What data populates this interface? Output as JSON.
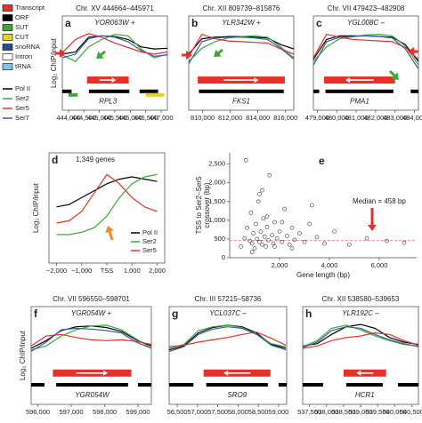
{
  "legend": {
    "tracks": [
      {
        "name": "Transcript",
        "color": "#e8302a"
      },
      {
        "name": "ORF",
        "color": "#000000"
      },
      {
        "name": "SUT",
        "color": "#3aaa35"
      },
      {
        "name": "CUT",
        "color": "#e8d21c"
      },
      {
        "name": "snoRNA",
        "color": "#1f4e9e"
      },
      {
        "name": "Intron",
        "color": "#ffffff"
      },
      {
        "name": "tRNA",
        "color": "#7fc7e8"
      }
    ],
    "series": [
      {
        "name": "Pol II",
        "color": "#000000"
      },
      {
        "name": "Ser2",
        "color": "#3aaa35"
      },
      {
        "name": "Ser5",
        "color": "#e8302a"
      },
      {
        "name": "Ser7",
        "color": "#3b5ba9"
      }
    ]
  },
  "chart_data": [
    {
      "type": "line",
      "letter": "a",
      "title": "Chr. XV 444664–445971",
      "subtitle": "YOR063W +",
      "gene": "RPL3",
      "ylabel": "Log₂ ChIP/input",
      "xlim": [
        443800,
        447200
      ],
      "ylim": [
        -3,
        3
      ],
      "xticks": [
        {
          "value": 444000,
          "label": "444,000"
        },
        {
          "value": 444500,
          "label": "444,500"
        },
        {
          "value": 445000,
          "label": "445,000"
        },
        {
          "value": 445500,
          "label": "445,500"
        },
        {
          "value": 446000,
          "label": "446,000"
        },
        {
          "value": 446500,
          "label": "446,500"
        },
        {
          "value": 447000,
          "label": "447,000"
        }
      ],
      "x": [
        443800,
        444225,
        444650,
        445075,
        445500,
        445925,
        446350,
        446775,
        447200
      ],
      "series": [
        {
          "name": "Pol II",
          "color": "#000000",
          "values": [
            -0.5,
            -0.2,
            1.8,
            2.0,
            1.9,
            1.5,
            0.5,
            0.2,
            0.3
          ]
        },
        {
          "name": "Ser2",
          "color": "#3aaa35",
          "values": [
            -0.6,
            -1.5,
            0.5,
            1.5,
            2.2,
            2.0,
            0.2,
            -1.0,
            -0.5
          ]
        },
        {
          "name": "Ser5",
          "color": "#e8302a",
          "values": [
            -0.3,
            1.5,
            2.3,
            1.8,
            1.0,
            0.4,
            -0.2,
            -0.5,
            -0.2
          ]
        },
        {
          "name": "Ser7",
          "color": "#3b5ba9",
          "values": [
            -1.0,
            -0.5,
            1.6,
            2.0,
            1.8,
            1.2,
            0.0,
            -0.8,
            -0.6
          ]
        }
      ],
      "transcript": [
        444600,
        445950
      ],
      "orfs": [
        [
          444664,
          445971
        ],
        [
          443800,
          444100
        ],
        [
          446300,
          446900
        ]
      ],
      "suts": [
        [
          444000,
          444300
        ]
      ],
      "cuts": [
        [
          446500,
          447100
        ]
      ]
    },
    {
      "type": "line",
      "letter": "b",
      "title": "Chr. XII 809739–815876",
      "subtitle": "YLR342W +",
      "gene": "FKS1",
      "xlim": [
        809000,
        816600
      ],
      "ylim": [
        -3,
        3
      ],
      "xticks": [
        {
          "value": 810000,
          "label": "810,000"
        },
        {
          "value": 812000,
          "label": "812,000"
        },
        {
          "value": 814000,
          "label": "814,000"
        },
        {
          "value": 816000,
          "label": "816,000"
        }
      ],
      "x": [
        809000,
        809950,
        810900,
        811850,
        812800,
        813750,
        814700,
        815650,
        816600
      ],
      "series": [
        {
          "name": "Pol II",
          "color": "#000000",
          "values": [
            -0.5,
            1.6,
            1.8,
            1.9,
            1.9,
            1.8,
            1.7,
            0.8,
            0.2
          ]
        },
        {
          "name": "Ser2",
          "color": "#3aaa35",
          "values": [
            -1.5,
            0.3,
            1.2,
            1.7,
            1.9,
            2.0,
            1.8,
            0.5,
            -1.0
          ]
        },
        {
          "name": "Ser5",
          "color": "#e8302a",
          "values": [
            -0.8,
            2.2,
            1.6,
            1.3,
            1.2,
            1.1,
            1.0,
            0.2,
            -0.5
          ]
        },
        {
          "name": "Ser7",
          "color": "#3b5ba9",
          "values": [
            -1.8,
            1.2,
            1.7,
            1.8,
            1.8,
            1.7,
            1.5,
            0.3,
            -1.2
          ]
        }
      ],
      "transcript": [
        809650,
        815950
      ],
      "orfs": [
        [
          809739,
          815876
        ]
      ]
    },
    {
      "type": "line",
      "letter": "c",
      "title": "Chr. VII 479423–482908",
      "subtitle": "YGL008C –",
      "gene": "PMA1",
      "xlim": [
        478800,
        484200
      ],
      "ylim": [
        -3,
        3
      ],
      "xticks": [
        {
          "value": 479000,
          "label": "479,000"
        },
        {
          "value": 480000,
          "label": "480,000"
        },
        {
          "value": 481000,
          "label": "481,000"
        },
        {
          "value": 482000,
          "label": "482,000"
        },
        {
          "value": 483000,
          "label": "483,000"
        },
        {
          "value": 484000,
          "label": "484,000"
        }
      ],
      "x": [
        478800,
        479475,
        480150,
        480825,
        481500,
        482175,
        482850,
        483525,
        484200
      ],
      "series": [
        {
          "name": "Pol II",
          "color": "#000000",
          "values": [
            -1.2,
            1.5,
            2.0,
            2.0,
            2.0,
            1.9,
            1.8,
            0.8,
            -1.5
          ]
        },
        {
          "name": "Ser2",
          "color": "#3aaa35",
          "values": [
            -1.5,
            0.5,
            1.6,
            1.9,
            2.1,
            2.2,
            2.0,
            0.6,
            -2.0
          ]
        },
        {
          "name": "Ser5",
          "color": "#e8302a",
          "values": [
            -1.0,
            2.2,
            1.8,
            1.5,
            1.4,
            1.3,
            1.2,
            0.4,
            -1.2
          ]
        },
        {
          "name": "Ser7",
          "color": "#3b5ba9",
          "values": [
            -2.0,
            1.2,
            1.8,
            1.9,
            2.0,
            1.9,
            1.7,
            0.2,
            -2.5
          ]
        }
      ],
      "transcript": [
        483000,
        479350
      ],
      "orfs": [
        [
          479423,
          482908
        ],
        [
          478800,
          479100
        ],
        [
          483800,
          484200
        ]
      ]
    },
    {
      "type": "line",
      "letter": "d",
      "subtitle": "1,349 genes",
      "ylabel": "Log₂ ChIP/input",
      "legend": true,
      "xlim": [
        -2300,
        2300
      ],
      "ylim": [
        -2,
        2
      ],
      "xticks": [
        {
          "value": -2000,
          "label": "−2,000"
        },
        {
          "value": -1000,
          "label": "−1,000"
        },
        {
          "value": 0,
          "label": "TSS"
        },
        {
          "value": 1000,
          "label": "1,000"
        },
        {
          "value": 2000,
          "label": "2,000"
        }
      ],
      "x": [
        -2000,
        -1500,
        -1000,
        -500,
        0,
        500,
        1000,
        1500,
        2000
      ],
      "series": [
        {
          "name": "Pol II",
          "color": "#000000",
          "values": [
            0.2,
            0.3,
            0.6,
            0.9,
            1.2,
            1.4,
            1.5,
            1.4,
            1.3
          ]
        },
        {
          "name": "Ser2",
          "color": "#3aaa35",
          "values": [
            -1.0,
            -1.0,
            -0.9,
            -0.7,
            -0.2,
            0.6,
            1.2,
            1.5,
            1.6
          ]
        },
        {
          "name": "Ser5",
          "color": "#e8302a",
          "values": [
            -0.5,
            -0.4,
            0.0,
            0.8,
            1.6,
            1.2,
            0.6,
            0.2,
            0.0
          ]
        }
      ]
    },
    {
      "type": "scatter",
      "letter": "e",
      "xlabel": "Gene length (bp)",
      "ylabel": [
        "TSS to Ser2–Ser5",
        "crossover (bp)"
      ],
      "annotation": "Median = 458 bp",
      "median": 458,
      "xlim": [
        0,
        7500
      ],
      "ylim": [
        0,
        2800
      ],
      "xticks": [
        {
          "value": 2000,
          "label": "2,000"
        },
        {
          "value": 4000,
          "label": "4,000"
        },
        {
          "value": 6000,
          "label": "6,000"
        }
      ],
      "yticks": [
        0,
        500,
        {
          "value": 1000,
          "label": "1,000"
        },
        {
          "value": 1500,
          "label": "1,500"
        },
        {
          "value": 2000,
          "label": "2,000"
        },
        {
          "value": 2500,
          "label": "2,500"
        }
      ],
      "x": [
        450,
        600,
        700,
        800,
        850,
        900,
        950,
        1000,
        1050,
        1100,
        1150,
        1200,
        1250,
        1300,
        1350,
        1400,
        1450,
        1500,
        1550,
        1600,
        1700,
        1750,
        1800,
        1900,
        2000,
        2100,
        2200,
        2300,
        2400,
        2500,
        2600,
        2800,
        3000,
        3200,
        3500,
        3800,
        4200,
        4800,
        5500,
        6300,
        7000,
        900,
        1200,
        1500,
        1800,
        2100,
        650,
        1300,
        2500,
        3300
      ],
      "values": [
        300,
        520,
        800,
        450,
        1200,
        380,
        650,
        250,
        900,
        500,
        1500,
        420,
        700,
        350,
        1050,
        560,
        300,
        820,
        470,
        2200,
        600,
        380,
        950,
        520,
        700,
        420,
        1300,
        580,
        350,
        800,
        480,
        650,
        420,
        900,
        550,
        380,
        700,
        350,
        520,
        450,
        400,
        150,
        1700,
        1100,
        300,
        950,
        2600,
        1800,
        250,
        1400
      ]
    },
    {
      "type": "line",
      "letter": "f",
      "title": "Chr. VII 596550–598701",
      "subtitle": "YGR054W +",
      "gene": "YGR054W",
      "ylabel": "Log₂ ChIP/input",
      "xlim": [
        595800,
        599400
      ],
      "ylim": [
        -3,
        3
      ],
      "xticks": [
        {
          "value": 596000,
          "label": "596,000"
        },
        {
          "value": 597000,
          "label": "597,000"
        },
        {
          "value": 598000,
          "label": "598,000"
        },
        {
          "value": 599000,
          "label": "599,000"
        }
      ],
      "x": [
        595800,
        596250,
        596700,
        597150,
        597600,
        598050,
        598500,
        598950,
        599400
      ],
      "series": [
        {
          "name": "Pol II",
          "color": "#000000",
          "values": [
            -0.8,
            0.2,
            1.5,
            2.0,
            2.1,
            1.9,
            1.4,
            0.3,
            -0.5
          ]
        },
        {
          "name": "Ser2",
          "color": "#3aaa35",
          "values": [
            -1.0,
            -0.5,
            0.8,
            1.6,
            2.1,
            2.2,
            1.6,
            0.4,
            -0.8
          ]
        },
        {
          "name": "Ser5",
          "color": "#e8302a",
          "values": [
            -0.5,
            0.8,
            1.0,
            0.6,
            0.3,
            0.2,
            0.3,
            0.1,
            -0.3
          ]
        },
        {
          "name": "Ser7",
          "color": "#3b5ba9",
          "values": [
            -1.2,
            0.0,
            1.6,
            1.8,
            1.7,
            1.5,
            1.2,
            0.0,
            -0.8
          ]
        }
      ],
      "transcript": [
        596450,
        598800
      ],
      "orfs": [
        [
          596550,
          598701
        ],
        [
          595800,
          596200
        ],
        [
          599000,
          599400
        ]
      ]
    },
    {
      "type": "line",
      "letter": "g",
      "title": "Chr. III 57215–58736",
      "subtitle": "YCL037C –",
      "gene": "SRO9",
      "xlim": [
        56300,
        59200
      ],
      "ylim": [
        -3,
        3
      ],
      "xticks": [
        {
          "value": 56500,
          "label": "56,500"
        },
        {
          "value": 57000,
          "label": "57,000"
        },
        {
          "value": 57500,
          "label": "57,500"
        },
        {
          "value": 58000,
          "label": "58,000"
        },
        {
          "value": 58500,
          "label": "58,500"
        },
        {
          "value": 59000,
          "label": "59,000"
        }
      ],
      "x": [
        56300,
        56660,
        57020,
        57380,
        57740,
        58100,
        58460,
        58820,
        59180
      ],
      "series": [
        {
          "name": "Pol II",
          "color": "#000000",
          "values": [
            -1.0,
            -0.5,
            1.2,
            1.9,
            2.2,
            2.0,
            1.2,
            -0.3,
            -0.8
          ]
        },
        {
          "name": "Ser2",
          "color": "#3aaa35",
          "values": [
            -0.8,
            -0.3,
            1.5,
            2.0,
            2.2,
            1.9,
            1.0,
            -0.2,
            -0.6
          ]
        },
        {
          "name": "Ser5",
          "color": "#e8302a",
          "values": [
            -0.6,
            -0.4,
            0.0,
            0.3,
            0.6,
            1.0,
            1.3,
            0.5,
            -0.4
          ]
        },
        {
          "name": "Ser7",
          "color": "#3b5ba9",
          "values": [
            -1.2,
            -0.6,
            1.0,
            1.7,
            2.0,
            1.8,
            1.0,
            -0.4,
            -1.0
          ]
        }
      ],
      "transcript": [
        58800,
        57150
      ],
      "orfs": [
        [
          57215,
          58736
        ],
        [
          56300,
          56900
        ],
        [
          59000,
          59200
        ]
      ]
    },
    {
      "type": "line",
      "letter": "h",
      "title": "Chr. XII 538580–539653",
      "subtitle": "YLR192C –",
      "gene": "HCR1",
      "xlim": [
        537300,
        540700
      ],
      "ylim": [
        -3,
        3
      ],
      "xticks": [
        {
          "value": 537500,
          "label": "537,500"
        },
        {
          "value": 538000,
          "label": "538,000"
        },
        {
          "value": 538500,
          "label": "538,500"
        },
        {
          "value": 539000,
          "label": "539,000"
        },
        {
          "value": 539500,
          "label": "539,500"
        },
        {
          "value": 540000,
          "label": "540,000"
        },
        {
          "value": 540500,
          "label": "540,500"
        }
      ],
      "x": [
        537300,
        537725,
        538150,
        538575,
        539000,
        539425,
        539850,
        540275,
        540700
      ],
      "series": [
        {
          "name": "Pol II",
          "color": "#000000",
          "values": [
            -0.5,
            -0.2,
            1.0,
            2.0,
            2.3,
            1.8,
            0.6,
            0.0,
            -0.3
          ]
        },
        {
          "name": "Ser2",
          "color": "#3aaa35",
          "values": [
            -0.6,
            0.2,
            1.8,
            2.2,
            1.6,
            0.8,
            0.2,
            -0.3,
            -0.5
          ]
        },
        {
          "name": "Ser5",
          "color": "#e8302a",
          "values": [
            -0.8,
            -0.5,
            0.2,
            0.6,
            0.8,
            1.2,
            1.0,
            0.2,
            -0.4
          ]
        },
        {
          "name": "Ser7",
          "color": "#3b5ba9",
          "values": [
            -0.7,
            0.0,
            1.5,
            2.0,
            1.8,
            1.0,
            0.3,
            -0.2,
            -0.6
          ]
        }
      ],
      "transcript": [
        539750,
        538500
      ],
      "orfs": [
        [
          538580,
          539653
        ],
        [
          537300,
          537900
        ],
        [
          540100,
          540700
        ]
      ]
    }
  ]
}
